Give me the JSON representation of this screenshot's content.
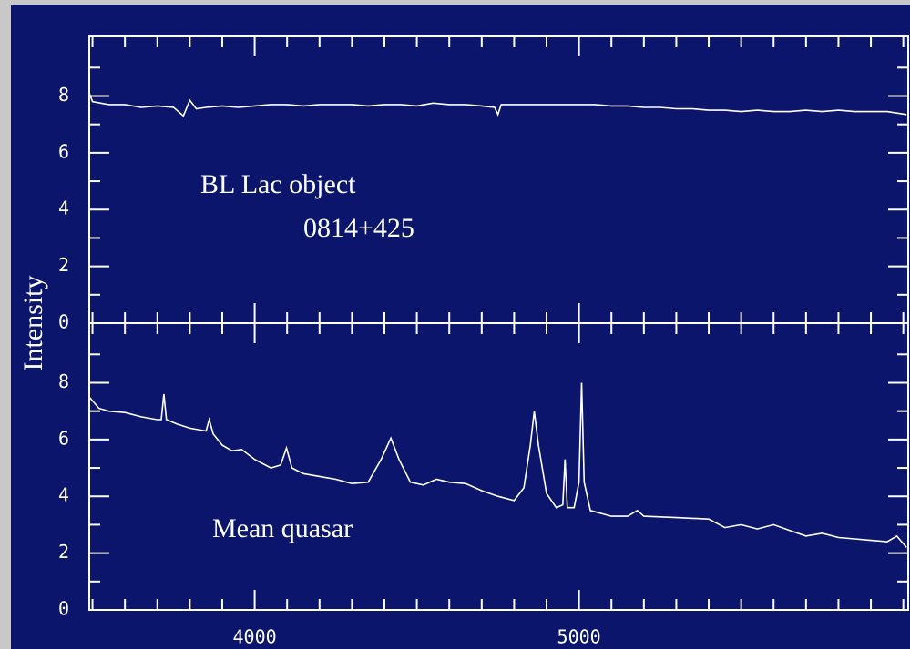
{
  "chart_data": [
    {
      "type": "line",
      "annotation": [
        "BL Lac object",
        "0814+425"
      ],
      "ylabel": "Intensity",
      "color": "#ffffff",
      "x": [
        3490,
        3500,
        3550,
        3600,
        3650,
        3700,
        3750,
        3780,
        3800,
        3820,
        3850,
        3900,
        3950,
        4000,
        4050,
        4100,
        4150,
        4200,
        4250,
        4300,
        4350,
        4400,
        4450,
        4500,
        4550,
        4600,
        4650,
        4700,
        4740,
        4750,
        4760,
        4800,
        4850,
        4900,
        4950,
        5000,
        5050,
        5100,
        5150,
        5200,
        5250,
        5300,
        5350,
        5400,
        5450,
        5500,
        5550,
        5600,
        5650,
        5700,
        5750,
        5800,
        5850,
        5900,
        5950,
        6010
      ],
      "values": [
        8.1,
        7.8,
        7.7,
        7.7,
        7.6,
        7.65,
        7.6,
        7.3,
        7.85,
        7.55,
        7.6,
        7.65,
        7.6,
        7.65,
        7.7,
        7.7,
        7.65,
        7.7,
        7.7,
        7.7,
        7.65,
        7.7,
        7.7,
        7.65,
        7.75,
        7.7,
        7.7,
        7.65,
        7.6,
        7.35,
        7.7,
        7.7,
        7.7,
        7.7,
        7.7,
        7.7,
        7.7,
        7.65,
        7.65,
        7.6,
        7.6,
        7.55,
        7.55,
        7.5,
        7.5,
        7.45,
        7.5,
        7.45,
        7.45,
        7.5,
        7.45,
        7.5,
        7.45,
        7.45,
        7.45,
        7.35
      ],
      "xlim": [
        3490,
        6015
      ],
      "ylim": [
        0,
        10.1
      ],
      "xticks": [
        4000,
        5000
      ],
      "xticklabels": false,
      "xminorticks": [
        3500,
        3600,
        3700,
        3800,
        3900,
        4100,
        4200,
        4300,
        4400,
        4500,
        4600,
        4700,
        4800,
        4900,
        5100,
        5200,
        5300,
        5400,
        5500,
        5600,
        5700,
        5800,
        5900,
        6000
      ],
      "yticks": [
        0,
        2,
        4,
        6,
        8
      ],
      "yminorticks": [
        1,
        3,
        5,
        7,
        9
      ]
    },
    {
      "type": "line",
      "annotation": [
        "Mean quasar"
      ],
      "color": "#ffffff",
      "x": [
        3490,
        3520,
        3550,
        3600,
        3650,
        3700,
        3712,
        3720,
        3728,
        3760,
        3800,
        3850,
        3860,
        3872,
        3900,
        3930,
        3960,
        4000,
        4050,
        4080,
        4098,
        4115,
        4150,
        4200,
        4250,
        4300,
        4350,
        4390,
        4420,
        4445,
        4480,
        4520,
        4560,
        4600,
        4650,
        4700,
        4750,
        4800,
        4830,
        4850,
        4862,
        4875,
        4900,
        4930,
        4950,
        4957,
        4964,
        4985,
        5000,
        5008,
        5016,
        5035,
        5100,
        5150,
        5180,
        5200,
        5300,
        5400,
        5450,
        5500,
        5550,
        5600,
        5650,
        5700,
        5750,
        5800,
        5850,
        5900,
        5950,
        5980,
        6010
      ],
      "values": [
        7.5,
        7.1,
        7.0,
        6.95,
        6.8,
        6.7,
        6.7,
        7.6,
        6.7,
        6.55,
        6.4,
        6.3,
        6.7,
        6.2,
        5.8,
        5.6,
        5.65,
        5.3,
        5.0,
        5.1,
        5.7,
        5.0,
        4.8,
        4.7,
        4.6,
        4.45,
        4.5,
        5.3,
        6.05,
        5.3,
        4.5,
        4.4,
        4.6,
        4.5,
        4.45,
        4.2,
        4.0,
        3.85,
        4.3,
        5.8,
        7.0,
        5.8,
        4.1,
        3.6,
        3.7,
        5.3,
        3.6,
        3.6,
        4.5,
        8.0,
        4.5,
        3.5,
        3.3,
        3.3,
        3.5,
        3.3,
        3.25,
        3.2,
        2.9,
        3.0,
        2.85,
        3.0,
        2.8,
        2.6,
        2.7,
        2.55,
        2.5,
        2.45,
        2.4,
        2.6,
        2.2
      ],
      "xlim": [
        3490,
        6015
      ],
      "ylim": [
        0,
        10.1
      ],
      "xticks": [
        4000,
        5000
      ],
      "xticklabels": true,
      "xminorticks": [
        3500,
        3600,
        3700,
        3800,
        3900,
        4100,
        4200,
        4300,
        4400,
        4500,
        4600,
        4700,
        4800,
        4900,
        5100,
        5200,
        5300,
        5400,
        5500,
        5600,
        5700,
        5800,
        5900,
        6000
      ],
      "yticks": [
        0,
        2,
        4,
        6,
        8
      ],
      "yminorticks": [
        1,
        3,
        5,
        7,
        9
      ]
    }
  ]
}
